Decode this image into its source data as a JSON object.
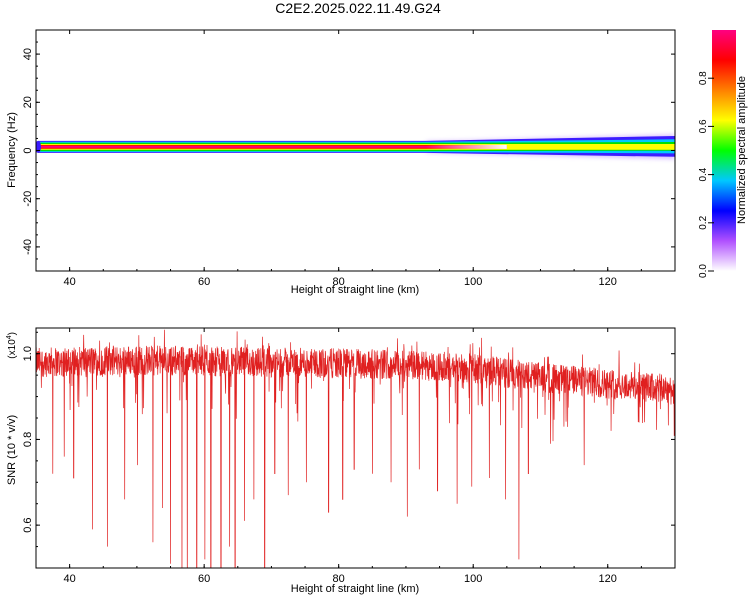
{
  "title": "C2E2.2025.022.11.49.G24",
  "chart_data": [
    {
      "type": "heatmap",
      "xlabel": "Height of straight line (km)",
      "ylabel": "Frequency (Hz)",
      "xlim": [
        35,
        130
      ],
      "ylim": [
        -50,
        50
      ],
      "xticks": [
        40,
        60,
        80,
        100,
        120
      ],
      "yticks": [
        40,
        20,
        0,
        -20,
        -40
      ],
      "grid": false,
      "colorbar": {
        "label": "Normalized spectral amplitude",
        "range": [
          0,
          1
        ],
        "ticks": [
          "0.0",
          "0.2",
          "0.4",
          "0.6",
          "0.8"
        ],
        "colors": [
          "#ffffff",
          "#b050ff",
          "#0000ff",
          "#00c8ff",
          "#00ff00",
          "#ffff00",
          "#ff8000",
          "#ff0000",
          "#ff0080"
        ]
      },
      "band": {
        "center_hz": 1.5,
        "core_halfwidth_hz": 1,
        "outer_halfwidth_start_hz": 2.5,
        "outer_halfwidth_end_hz": 4.5,
        "diffuse_start_km": 93
      }
    },
    {
      "type": "line",
      "xlabel": "Height of straight line (km)",
      "ylabel": "SNR (10 * v/v)",
      "y_multiplier_label": "(x10",
      "y_multiplier_exp": "4",
      "xlim": [
        35,
        130
      ],
      "ylim": [
        0.5,
        1.06
      ],
      "xticks": [
        40,
        60,
        80,
        100,
        120
      ],
      "yticks": [
        "1.0",
        "0.8",
        "0.6"
      ],
      "series_color": "#e02020",
      "baseline": [
        [
          35,
          0.98
        ],
        [
          50,
          0.985
        ],
        [
          70,
          0.98
        ],
        [
          90,
          0.975
        ],
        [
          100,
          0.965
        ],
        [
          110,
          0.945
        ],
        [
          120,
          0.93
        ],
        [
          130,
          0.915
        ]
      ],
      "dips": [
        [
          37.5,
          0.72
        ],
        [
          39.2,
          0.76
        ],
        [
          40.6,
          0.71
        ],
        [
          43.4,
          0.59
        ],
        [
          45.6,
          0.55
        ],
        [
          48.2,
          0.66
        ],
        [
          50.1,
          0.74
        ],
        [
          52.4,
          0.56
        ],
        [
          53.8,
          0.64
        ],
        [
          55.0,
          0.51
        ],
        [
          56.7,
          0.43
        ],
        [
          57.5,
          0.43
        ],
        [
          58.9,
          0.48
        ],
        [
          60.1,
          0.52
        ],
        [
          61.0,
          0.45
        ],
        [
          62.5,
          0.42
        ],
        [
          63.8,
          0.55
        ],
        [
          64.6,
          0.44
        ],
        [
          66.0,
          0.61
        ],
        [
          67.4,
          0.66
        ],
        [
          69.0,
          0.46
        ],
        [
          70.5,
          0.72
        ],
        [
          72.5,
          0.67
        ],
        [
          75.2,
          0.7
        ],
        [
          78.5,
          0.63
        ],
        [
          80.6,
          0.66
        ],
        [
          82.3,
          0.73
        ],
        [
          85.0,
          0.72
        ],
        [
          87.8,
          0.7
        ],
        [
          90.2,
          0.62
        ],
        [
          92.0,
          0.73
        ],
        [
          94.7,
          0.68
        ],
        [
          97.6,
          0.65
        ],
        [
          99.8,
          0.69
        ],
        [
          102.4,
          0.71
        ],
        [
          104.8,
          0.66
        ],
        [
          106.8,
          0.52
        ],
        [
          108.2,
          0.72
        ],
        [
          111.5,
          0.79
        ],
        [
          113.5,
          0.83
        ],
        [
          116.5,
          0.74
        ],
        [
          120.5,
          0.82
        ],
        [
          125.5,
          0.84
        ]
      ],
      "n_points": 2400
    }
  ]
}
